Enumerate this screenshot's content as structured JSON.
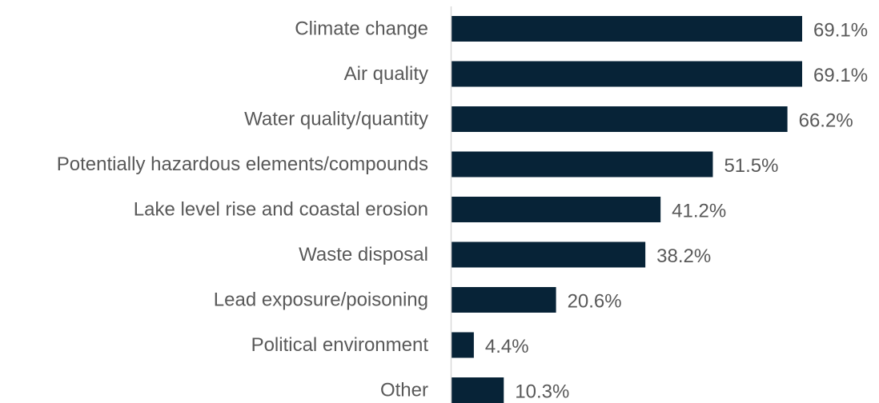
{
  "chart_data": {
    "type": "bar",
    "orientation": "horizontal",
    "categories": [
      "Climate change",
      "Air quality",
      "Water quality/quantity",
      "Potentially hazardous elements/compounds",
      "Lake level rise and coastal erosion",
      "Waste disposal",
      "Lead exposure/poisoning",
      "Political environment",
      "Other"
    ],
    "values": [
      69.1,
      69.1,
      66.2,
      51.5,
      41.2,
      38.2,
      20.6,
      4.4,
      10.3
    ],
    "value_labels": [
      "69.1%",
      "69.1%",
      "66.2%",
      "51.5%",
      "41.2%",
      "38.2%",
      "20.6%",
      "4.4%",
      "10.3%"
    ],
    "unit": "%",
    "title": "",
    "xlabel": "",
    "ylabel": "",
    "xlim": [
      0,
      80
    ],
    "grid": false,
    "legend": "none",
    "bar_color": "#072337",
    "axis_color": "#d9d9d9",
    "text_color": "#595959"
  }
}
